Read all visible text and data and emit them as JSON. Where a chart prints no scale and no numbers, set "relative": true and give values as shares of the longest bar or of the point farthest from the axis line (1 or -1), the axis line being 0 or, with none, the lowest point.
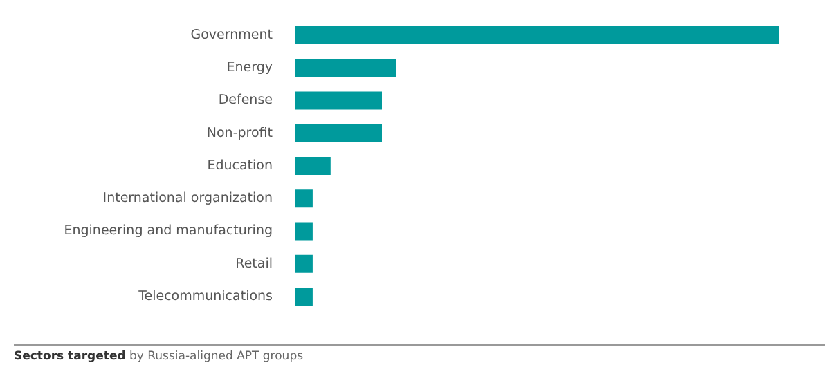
{
  "chart_data": {
    "type": "bar",
    "orientation": "horizontal",
    "relative": true,
    "categories": [
      "Government",
      "Energy",
      "Defense",
      "Non-profit",
      "Education",
      "International organization",
      "Engineering and manufacturing",
      "Retail",
      "Telecommunications"
    ],
    "values": [
      1,
      0.21,
      0.18,
      0.18,
      0.074,
      0.037,
      0.037,
      0.037,
      0.037
    ],
    "color": "#009a9c",
    "legend": false,
    "annotations": [
      "Sectors targeted",
      "by Russia-aligned APT groups"
    ]
  }
}
